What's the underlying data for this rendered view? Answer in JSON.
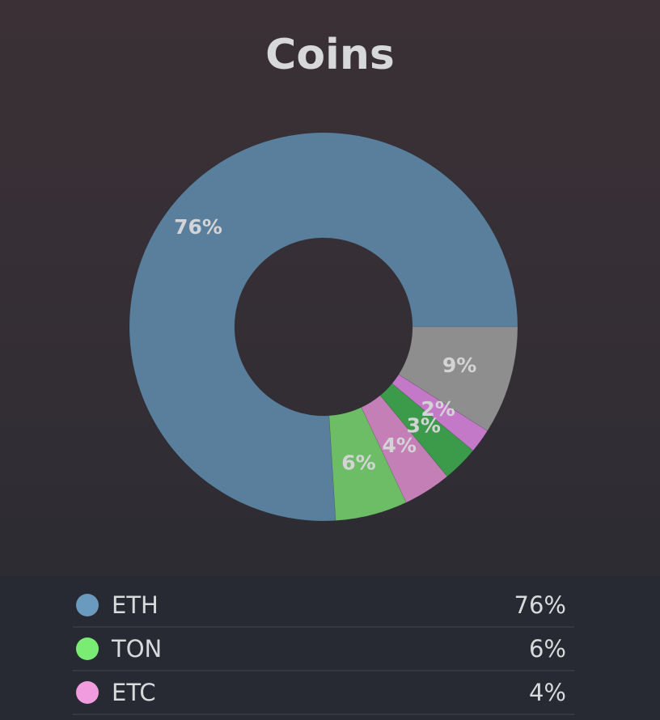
{
  "title": "Coins",
  "chart_data": {
    "type": "pie",
    "variant": "donut",
    "title": "Coins",
    "start_angle_deg": 0,
    "direction": "counterclockwise-from-3-oclock",
    "slices": [
      {
        "label": "ETH",
        "value": 76,
        "display": "76%",
        "color": "#5a7f9c"
      },
      {
        "label": "TON",
        "value": 6,
        "display": "6%",
        "color": "#6dbd66"
      },
      {
        "label": "ETC",
        "value": 4,
        "display": "4%",
        "color": "#c47fb7"
      },
      {
        "label": "",
        "value": 3,
        "display": "3%",
        "color": "#3c9b4a"
      },
      {
        "label": "",
        "value": 2,
        "display": "2%",
        "color": "#c478c8"
      },
      {
        "label": "",
        "value": 9,
        "display": "9%",
        "color": "#8e8e8e"
      }
    ],
    "legend_position": "bottom"
  },
  "legend": {
    "items": [
      {
        "name": "ETH",
        "value": "76%",
        "color": "#6a9bbf"
      },
      {
        "name": "TON",
        "value": "6%",
        "color": "#7aec74"
      },
      {
        "name": "ETC",
        "value": "4%",
        "color": "#f29ce0"
      }
    ]
  }
}
